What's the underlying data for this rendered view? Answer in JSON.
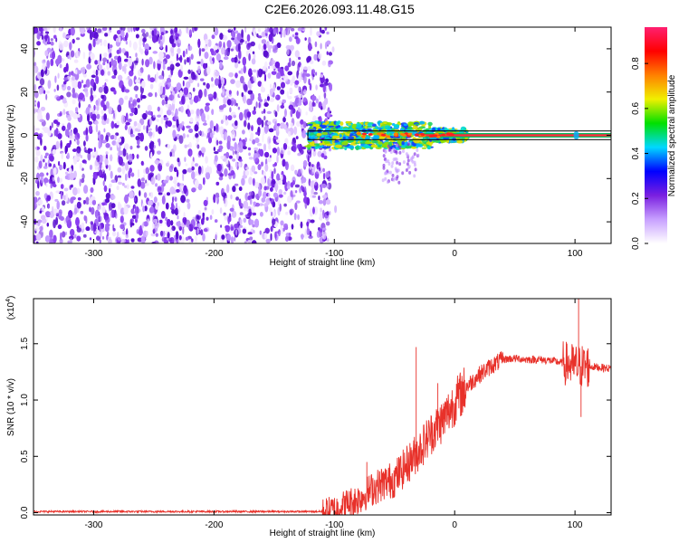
{
  "title": "C2E6.2026.093.11.48.G15",
  "chart_data": [
    {
      "type": "heatmap",
      "xlabel": "Height of straight line (km)",
      "ylabel": "Frequency (Hz)",
      "xlim": [
        -350,
        130
      ],
      "ylim": [
        -50,
        50
      ],
      "x_ticks": [
        -300,
        -200,
        -100,
        0,
        100
      ],
      "y_ticks": [
        -40,
        -20,
        0,
        20,
        40
      ],
      "colorbar": {
        "label": "Normalized spectral amplitude",
        "range": [
          0,
          1
        ],
        "ticks": [
          "0.0",
          "0.2",
          "0.4",
          "0.6",
          "0.8"
        ],
        "colors": [
          "#ffffff",
          "#c8a0ff",
          "#7a1fe0",
          "#0000ff",
          "#00d8ff",
          "#00e000",
          "#f0f000",
          "#ff8000",
          "#ff0000",
          "#ff2070"
        ]
      },
      "noise_region_x": [
        -350,
        -103
      ],
      "signal_trace": {
        "x_start": -122,
        "x_end": 130,
        "center_frequency": 0,
        "spread_frequency": [
          -10,
          8
        ]
      },
      "highlight_band_frequency": [
        -2,
        2
      ]
    },
    {
      "type": "line",
      "xlabel": "Height of straight line (km)",
      "ylabel": "SNR (10 * v/v)",
      "y_multiplier": "(x10^4)",
      "xlim": [
        -350,
        130
      ],
      "ylim": [
        -0.02,
        1.9
      ],
      "x_ticks": [
        -300,
        -200,
        -100,
        0,
        100
      ],
      "y_ticks": [
        "0.0",
        "0.5",
        "1.0",
        "1.5"
      ],
      "line_color": "#e8312a",
      "series": [
        {
          "x": [
            -350,
            -300,
            -250,
            -200,
            -150,
            -110,
            -100,
            -90,
            -80,
            -70,
            -60,
            -50,
            -40,
            -30,
            -20,
            -10,
            0,
            10,
            20,
            30,
            40,
            50,
            60,
            70,
            80,
            90,
            100,
            110,
            120,
            130
          ],
          "values": [
            0.01,
            0.01,
            0.01,
            0.01,
            0.01,
            0.01,
            0.03,
            0.08,
            0.12,
            0.2,
            0.26,
            0.3,
            0.42,
            0.55,
            0.7,
            0.82,
            0.98,
            1.12,
            1.22,
            1.3,
            1.36,
            1.37,
            1.36,
            1.36,
            1.35,
            1.33,
            1.3,
            1.3,
            1.29,
            1.28
          ]
        }
      ],
      "spikes": [
        {
          "x": -73,
          "y": 0.45
        },
        {
          "x": -32,
          "y": 1.47
        },
        {
          "x": -14,
          "y": 1.15
        },
        {
          "x": 103,
          "y": 1.95
        },
        {
          "x": 105,
          "y": 0.85
        }
      ]
    }
  ]
}
